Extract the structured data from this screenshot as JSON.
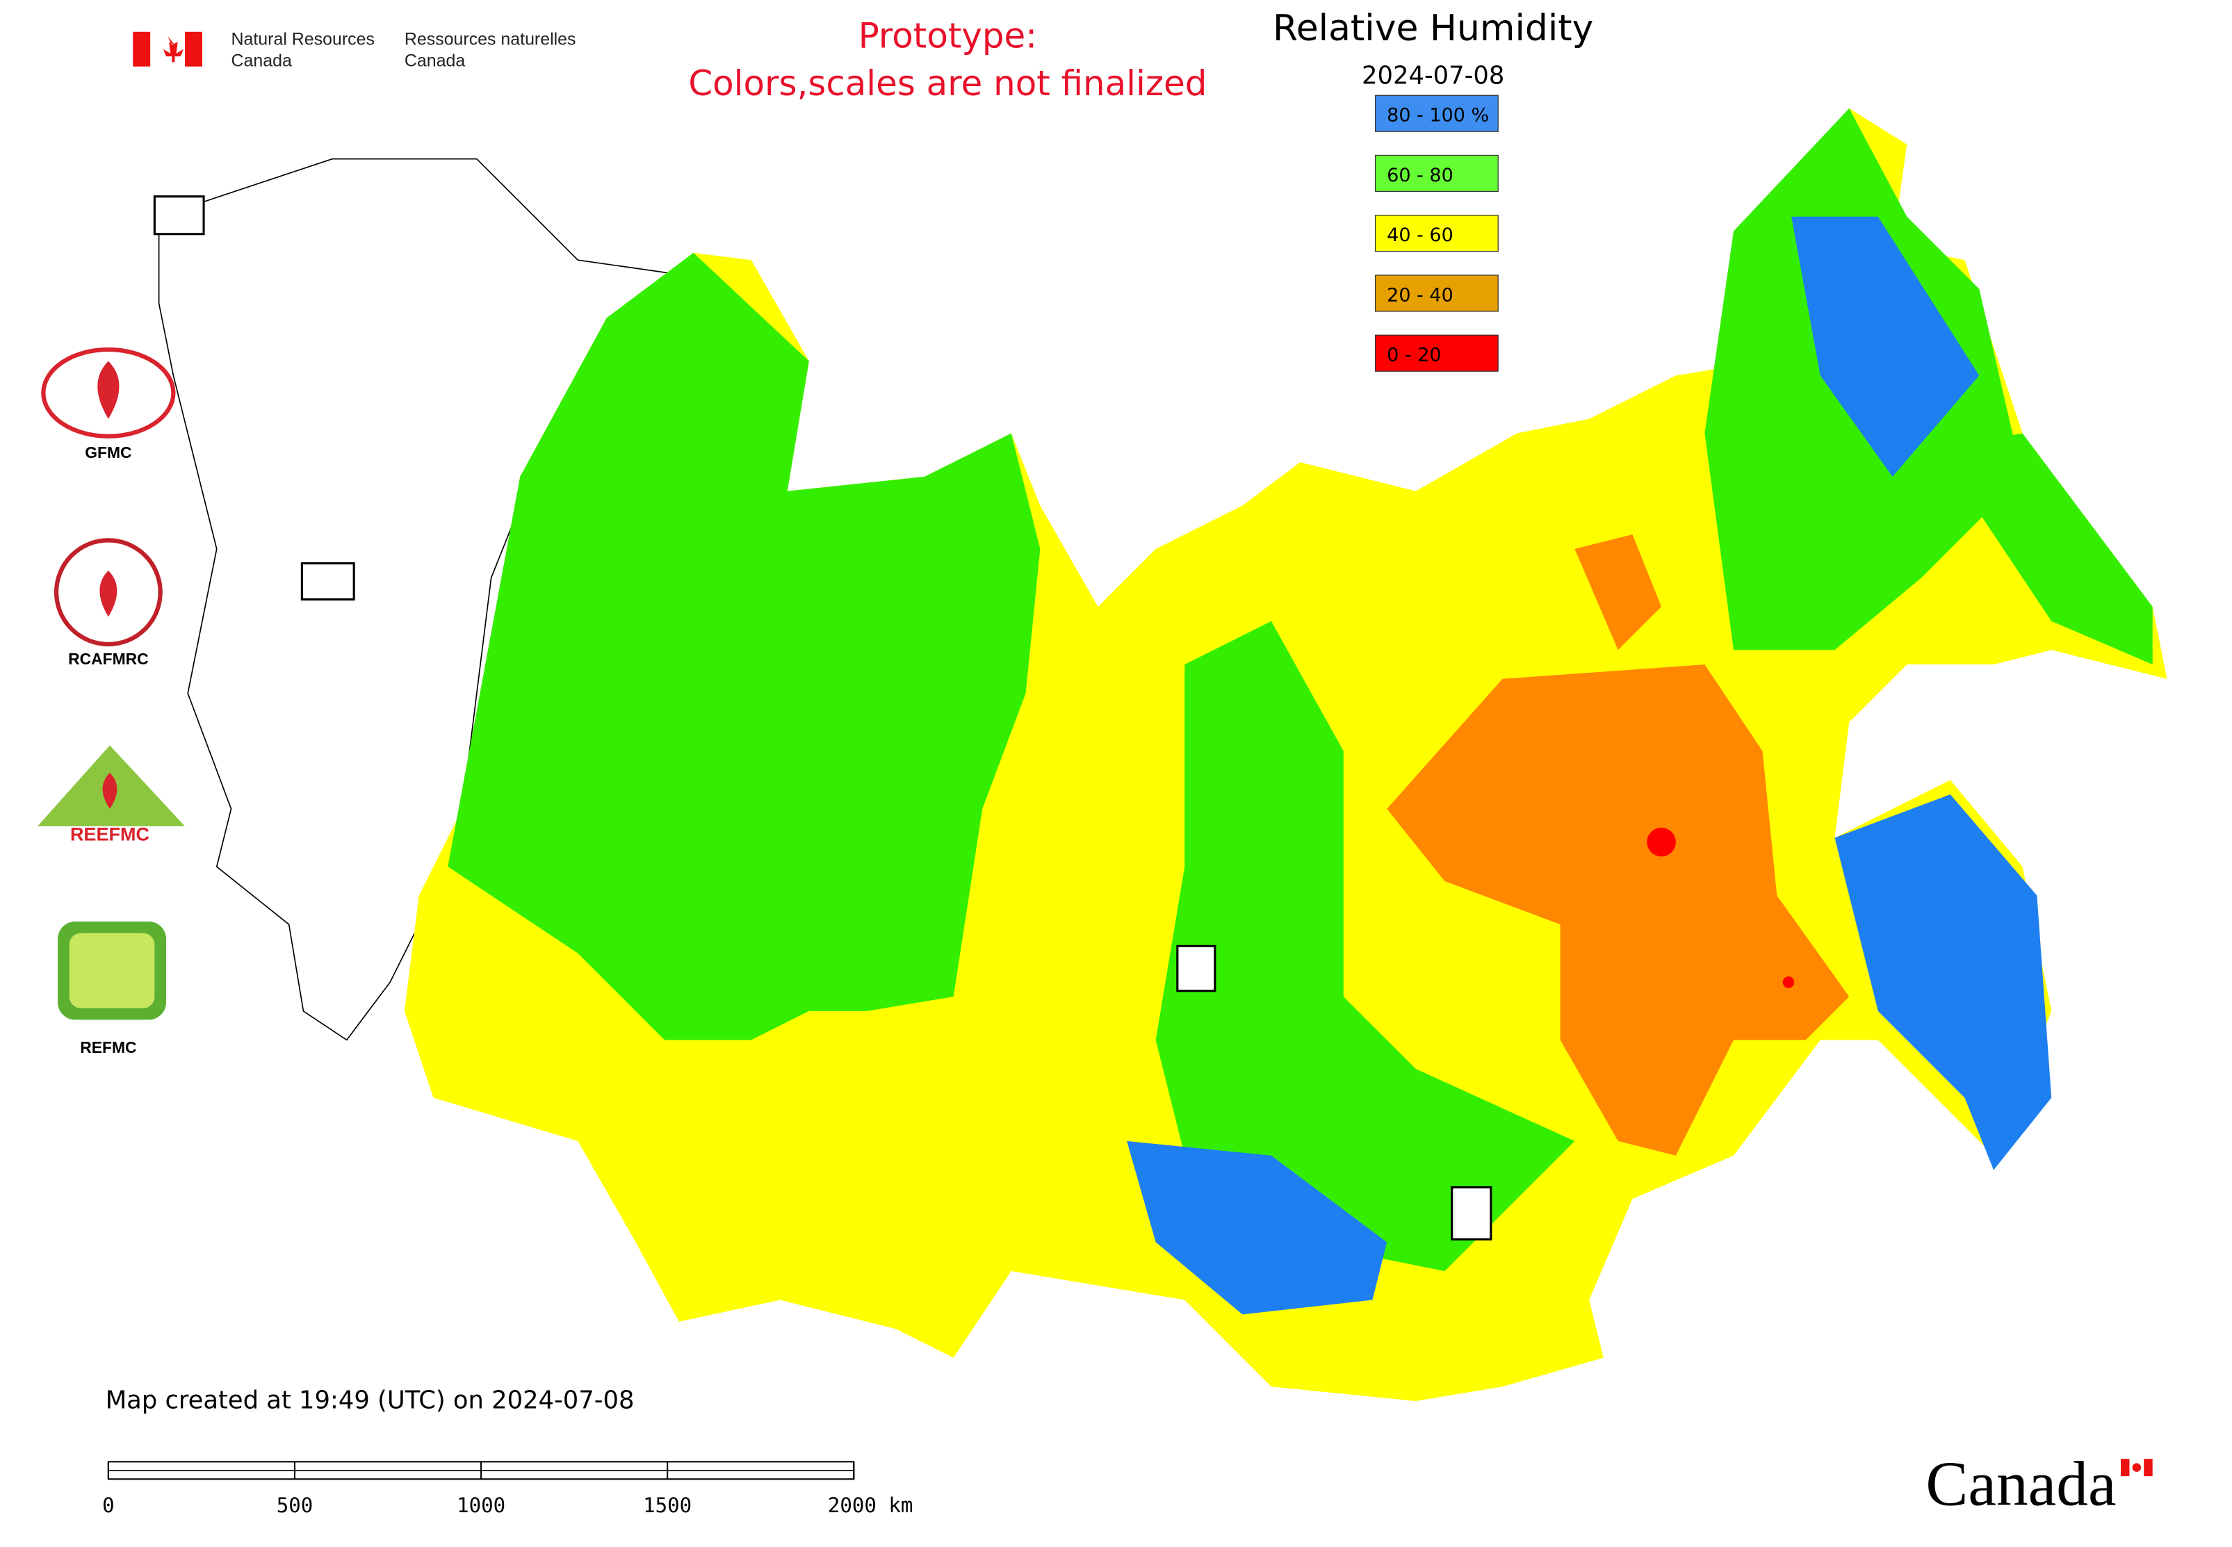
{
  "header": {
    "agency_en_1": "Natural Resources",
    "agency_en_2": "Canada",
    "agency_fr_1": "Ressources naturelles",
    "agency_fr_2": "Canada"
  },
  "notice": [
    "Prototype:",
    "Colors,scales are not finalized"
  ],
  "title": "Relative Humidity",
  "date": "2024-07-08",
  "legend": [
    {
      "label": "80 - 100 %",
      "color": "#3d8ef0"
    },
    {
      "label": "60 - 80",
      "color": "#66ff33"
    },
    {
      "label": "40 - 60",
      "color": "#ffff00"
    },
    {
      "label": "20 - 40",
      "color": "#e6a000"
    },
    {
      "label": "0 - 20",
      "color": "#ff0000"
    }
  ],
  "logos": [
    "GFMC",
    "RCAFMRC",
    "REEFMC",
    "REFMC"
  ],
  "footer": "Map created at 19:49 (UTC) on 2024-07-08",
  "scale_bar": [
    "0",
    "500",
    "1000",
    "1500",
    "2000 km"
  ],
  "wordmark": "Canada"
}
